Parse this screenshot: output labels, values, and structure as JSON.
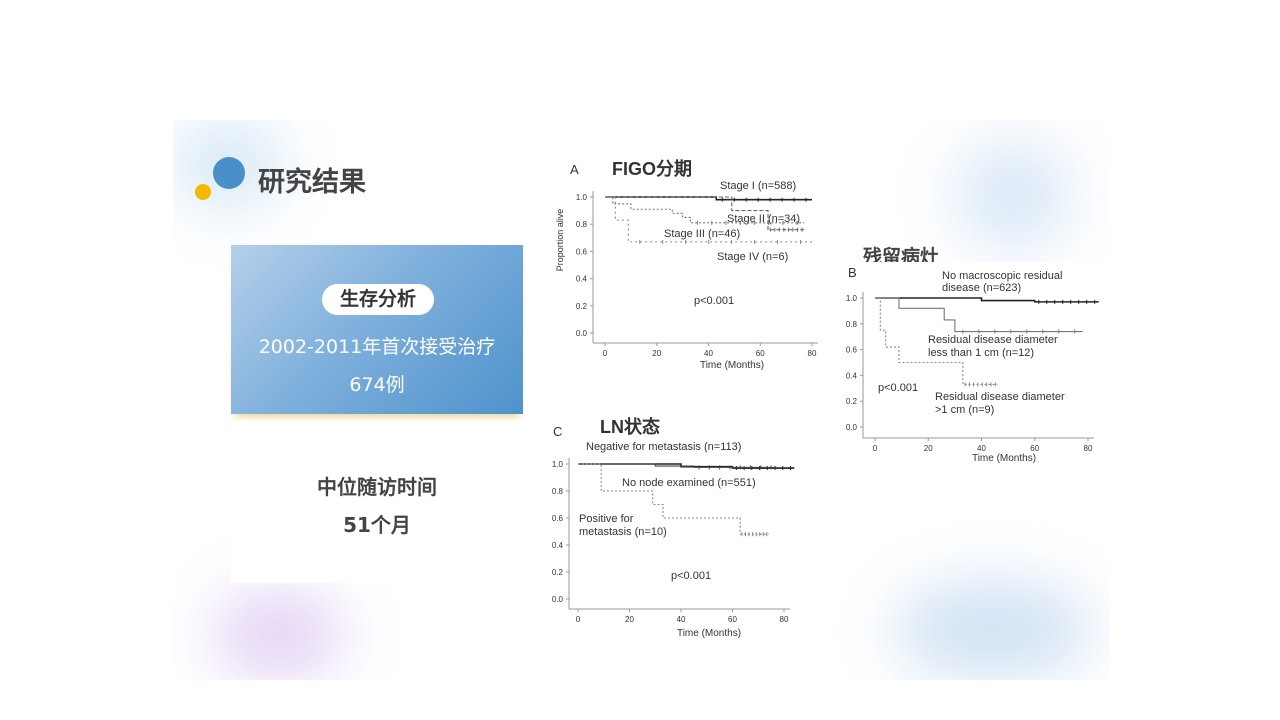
{
  "header": {
    "title": "研究结果",
    "logo_colors": {
      "blue": "#4a90c8",
      "yellow": "#f5b800"
    }
  },
  "survival_card": {
    "pill": "生存分析",
    "line1": "2002-2011年首次接受治疗",
    "line2": "674例",
    "color": "#4e92cc"
  },
  "followup_card": {
    "label": "中位随访时间",
    "value": "51个月"
  },
  "chart_data": [
    {
      "id": "A",
      "type": "line",
      "panel_letter": "A",
      "title": "FIGO分期",
      "ylabel": "Proportion alive",
      "xlabel": "Time (Months)",
      "xlim": [
        0,
        80
      ],
      "ylim": [
        0,
        1
      ],
      "xticks": [
        "0",
        "20",
        "40",
        "60",
        "80"
      ],
      "yticks": [
        "0.0",
        "0.2",
        "0.4",
        "0.6",
        "0.8",
        "1.0"
      ],
      "annotation": "p<0.001",
      "series": [
        {
          "name": "Stage I (n=588)",
          "steps": [
            [
              0,
              1.0
            ],
            [
              43,
              0.98
            ]
          ],
          "end": 80
        },
        {
          "name": "Stage II (n=34)",
          "steps": [
            [
              0,
              1.0
            ],
            [
              49,
              0.9
            ],
            [
              63,
              0.76
            ]
          ],
          "end": 77
        },
        {
          "name": "Stage III (n=46)",
          "steps": [
            [
              0,
              1.0
            ],
            [
              3,
              0.95
            ],
            [
              10,
              0.91
            ],
            [
              26,
              0.88
            ],
            [
              30,
              0.85
            ],
            [
              33,
              0.81
            ]
          ],
          "end": 77
        },
        {
          "name": "Stage IV (n=6)",
          "steps": [
            [
              0,
              1.0
            ],
            [
              4,
              0.83
            ],
            [
              9,
              0.67
            ]
          ],
          "end": 80
        }
      ]
    },
    {
      "id": "B",
      "type": "line",
      "panel_letter": "B",
      "title": "残留病灶",
      "xlabel": "Time (Months)",
      "xlim": [
        0,
        80
      ],
      "ylim": [
        0,
        1
      ],
      "xticks": [
        "0",
        "20",
        "40",
        "60",
        "80"
      ],
      "yticks": [
        "0.0",
        "0.2",
        "0.4",
        "0.6",
        "0.8",
        "1.0"
      ],
      "annotation": "p<0.001",
      "series": [
        {
          "name": [
            "No macroscopic residual",
            "disease (n=623)"
          ],
          "steps": [
            [
              0,
              1.0
            ],
            [
              40,
              0.98
            ],
            [
              60,
              0.97
            ]
          ],
          "end": 84
        },
        {
          "name": [
            "Residual disease diameter",
            "less than 1 cm (n=12)"
          ],
          "steps": [
            [
              0,
              1.0
            ],
            [
              9,
              0.92
            ],
            [
              26,
              0.83
            ],
            [
              30,
              0.74
            ]
          ],
          "end": 78
        },
        {
          "name": [
            "Residual disease diameter",
            ">1 cm (n=9)"
          ],
          "steps": [
            [
              0,
              1.0
            ],
            [
              2,
              0.75
            ],
            [
              4,
              0.62
            ],
            [
              9,
              0.5
            ],
            [
              33,
              0.33
            ]
          ],
          "end": 46
        }
      ]
    },
    {
      "id": "C",
      "type": "line",
      "panel_letter": "C",
      "title": "LN状态",
      "xlabel": "Time (Months)",
      "xlim": [
        0,
        80
      ],
      "ylim": [
        0,
        1
      ],
      "xticks": [
        "0",
        "20",
        "40",
        "60",
        "80"
      ],
      "yticks": [
        "0.0",
        "0.2",
        "0.4",
        "0.6",
        "0.8",
        "1.0"
      ],
      "annotation": "p<0.001",
      "series": [
        {
          "name": [
            "Negative for metastasis (n=113)"
          ],
          "steps": [
            [
              0,
              1.0
            ],
            [
              40,
              0.98
            ],
            [
              60,
              0.97
            ]
          ],
          "end": 84
        },
        {
          "name": [
            "No node examined (n=551)"
          ],
          "steps": [
            [
              0,
              1.0
            ],
            [
              30,
              0.985
            ],
            [
              45,
              0.975
            ]
          ],
          "end": 77
        },
        {
          "name": [
            "Positive for",
            "metastasis (n=10)"
          ],
          "steps": [
            [
              0,
              1.0
            ],
            [
              9,
              0.8
            ],
            [
              29,
              0.7
            ],
            [
              33,
              0.6
            ],
            [
              63,
              0.48
            ]
          ],
          "end": 74
        }
      ]
    }
  ]
}
